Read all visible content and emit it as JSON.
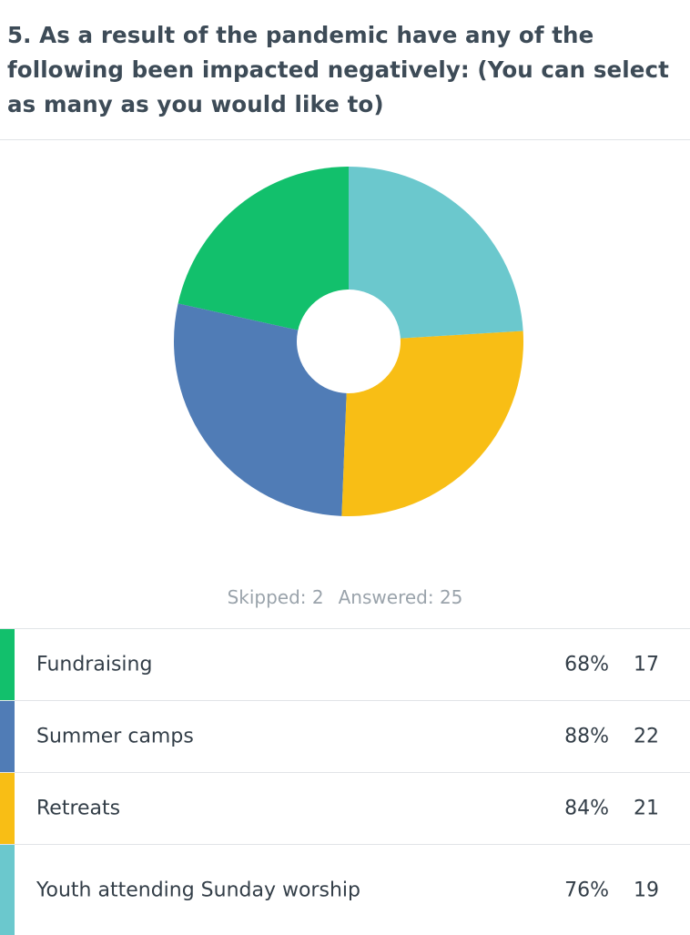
{
  "question": {
    "title": "5. As a result of the pandemic have any of the following been impacted negatively: (You can select as many as you would like to)"
  },
  "stats": {
    "skipped": "Skipped: 2",
    "answered": "Answered: 25"
  },
  "chart_data": {
    "type": "pie",
    "variant": "donut",
    "categories": [
      "Fundraising",
      "Summer camps",
      "Retreats",
      "Youth attending Sunday worship"
    ],
    "values": [
      17,
      22,
      21,
      19
    ],
    "percentages": [
      "68%",
      "88%",
      "84%",
      "76%"
    ],
    "colors": [
      "#12c06c",
      "#507cb6",
      "#f8be15",
      "#6bc8cd"
    ],
    "start": "12 o'clock",
    "direction": "counterclockwise",
    "legend": "table-below"
  },
  "rows": [
    {
      "label": "Fundraising",
      "percent": "68%",
      "count": "17",
      "color": "#12c06c"
    },
    {
      "label": "Summer camps",
      "percent": "88%",
      "count": "22",
      "color": "#507cb6"
    },
    {
      "label": "Retreats",
      "percent": "84%",
      "count": "21",
      "color": "#f8be15"
    },
    {
      "label": "Youth attending Sunday worship",
      "percent": "76%",
      "count": "19",
      "color": "#6bc8cd"
    }
  ]
}
